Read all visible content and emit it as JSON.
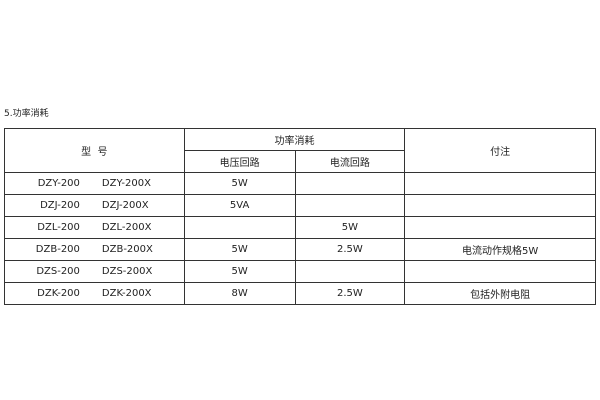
{
  "caption": "5.功率消耗",
  "headers": {
    "model": "型  号",
    "power": "功率消耗",
    "voltage": "电压回路",
    "current": "电流回路",
    "note": "付注"
  },
  "rows": [
    {
      "model_a": "DZY-200",
      "model_b": "DZY-200X",
      "voltage": "5W",
      "current": "",
      "note": ""
    },
    {
      "model_a": "DZJ-200",
      "model_b": "DZJ-200X",
      "voltage": "5VA",
      "current": "",
      "note": ""
    },
    {
      "model_a": "DZL-200",
      "model_b": "DZL-200X",
      "voltage": "",
      "current": "5W",
      "note": ""
    },
    {
      "model_a": "DZB-200",
      "model_b": "DZB-200X",
      "voltage": "5W",
      "current": "2.5W",
      "note": "电流动作规格5W"
    },
    {
      "model_a": "DZS-200",
      "model_b": "DZS-200X",
      "voltage": "5W",
      "current": "",
      "note": ""
    },
    {
      "model_a": "DZK-200",
      "model_b": "DZK-200X",
      "voltage": "8W",
      "current": "2.5W",
      "note": "包括外附电阻"
    }
  ]
}
